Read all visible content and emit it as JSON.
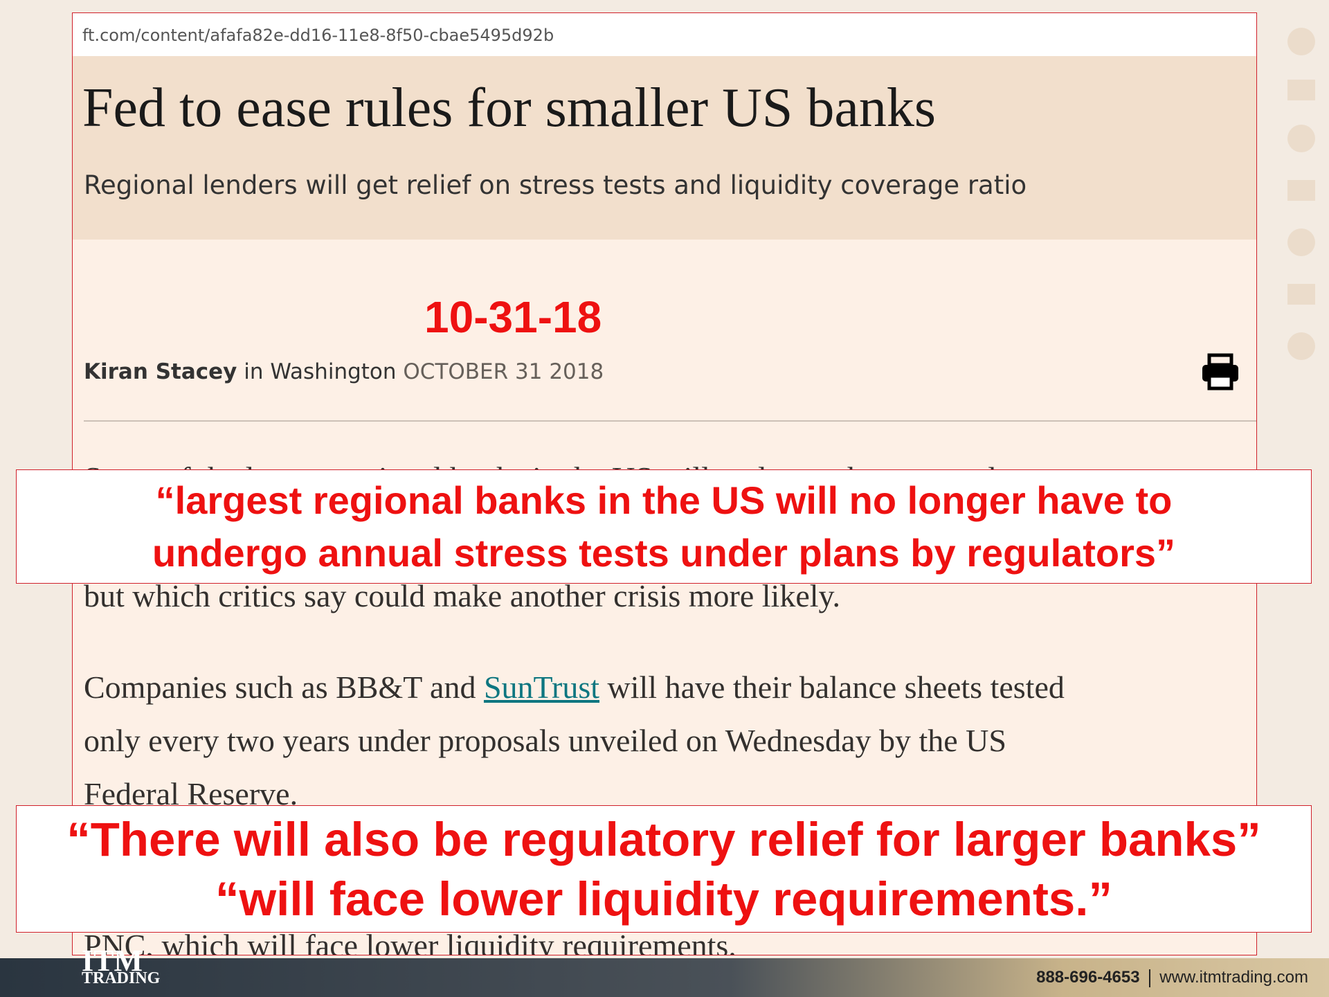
{
  "browser": {
    "url": "ft.com/content/afafa82e-dd16-11e8-8f50-cbae5495d92b"
  },
  "header": {
    "title": "Fed to ease rules for smaller US banks",
    "subtitle": "Regional lenders will get relief on stress tests and liquidity coverage ratio"
  },
  "annotation": {
    "date": "10-31-18"
  },
  "byline": {
    "author": "Kiran Stacey",
    "location": "in Washington",
    "date": "OCTOBER 31 2018"
  },
  "article": {
    "hidden_lines": [
      "Some of the largest regional banks in the US will no longer have to undergo",
      "but which critics say could make another crisis more likely."
    ],
    "paragraph": [
      [
        "Companies such as BB&T and ",
        "SunTrust",
        " will have their balance sheets tested"
      ],
      "only every two years under proposals unveiled on Wednesday by the US",
      "Federal Reserve."
    ],
    "last_line": "PNC, which will face lower liquidity requirements."
  },
  "callouts": [
    [
      "“largest regional banks in the US will no longer have to",
      "undergo annual stress tests under plans by regulators”"
    ],
    [
      "“There will also be regulatory relief for larger banks”",
      "“will face lower liquidity requirements.”"
    ]
  ],
  "footer": {
    "logo_mark": "ITM",
    "logo_text": "TRADING",
    "phone": "888-696-4653",
    "website": "www.itmtrading.com"
  }
}
